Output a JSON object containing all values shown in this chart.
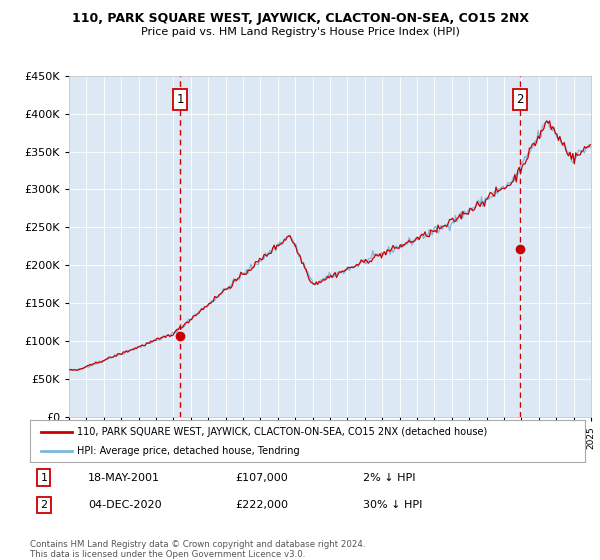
{
  "title": "110, PARK SQUARE WEST, JAYWICK, CLACTON-ON-SEA, CO15 2NX",
  "subtitle": "Price paid vs. HM Land Registry's House Price Index (HPI)",
  "background_color": "#dce9f5",
  "plot_bg_color": "#dce9f5",
  "hpi_color": "#7ab8d9",
  "price_color": "#cc0000",
  "dashed_color": "#cc0000",
  "ylim": [
    0,
    450000
  ],
  "yticks": [
    0,
    50000,
    100000,
    150000,
    200000,
    250000,
    300000,
    350000,
    400000,
    450000
  ],
  "year_start": 1995,
  "year_end": 2025,
  "sale1_year": 2001.38,
  "sale1_price": 107000,
  "sale1_label": "1",
  "sale2_year": 2020.92,
  "sale2_price": 222000,
  "sale2_label": "2",
  "legend_line1": "110, PARK SQUARE WEST, JAYWICK, CLACTON-ON-SEA, CO15 2NX (detached house)",
  "legend_line2": "HPI: Average price, detached house, Tendring",
  "table_row1": [
    "1",
    "18-MAY-2001",
    "£107,000",
    "2% ↓ HPI"
  ],
  "table_row2": [
    "2",
    "04-DEC-2020",
    "£222,000",
    "30% ↓ HPI"
  ],
  "footer": "Contains HM Land Registry data © Crown copyright and database right 2024.\nThis data is licensed under the Open Government Licence v3.0."
}
